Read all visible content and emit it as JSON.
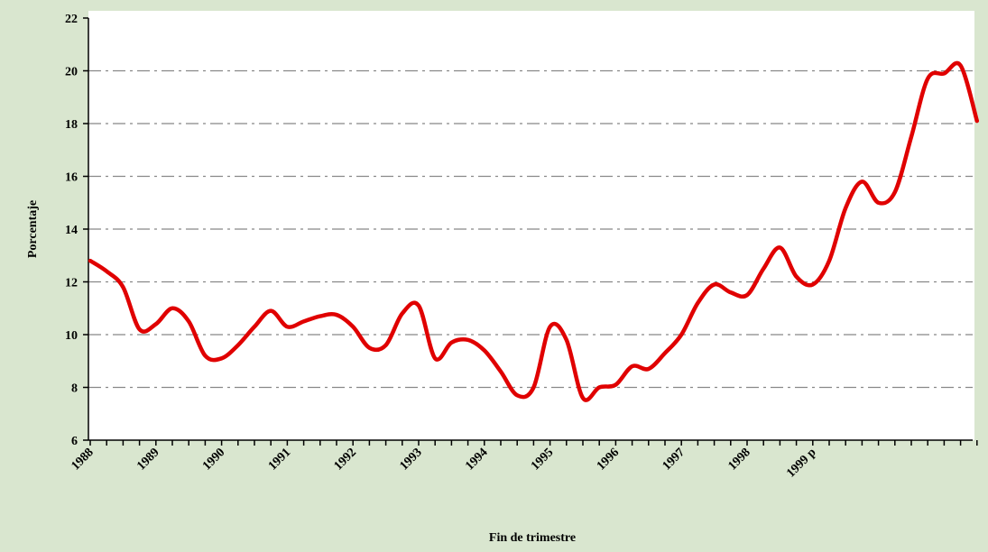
{
  "chart_data": {
    "type": "line",
    "x_label": "Fin de trimestre",
    "y_label": "Porcentaje",
    "categories": [
      "1988",
      null,
      null,
      null,
      "1989",
      null,
      null,
      null,
      "1990",
      null,
      null,
      null,
      "1991",
      null,
      null,
      null,
      "1992",
      null,
      null,
      null,
      "1993",
      null,
      null,
      null,
      "1994",
      null,
      null,
      null,
      "1995",
      null,
      null,
      null,
      "1996",
      null,
      null,
      null,
      "1997",
      null,
      null,
      null,
      "1998",
      null,
      null,
      null,
      "1999 p",
      null,
      null,
      null,
      null,
      null,
      null,
      null,
      null,
      null,
      null
    ],
    "series": [
      {
        "name": "Porcentaje",
        "color": "#e00000",
        "values": [
          12.8,
          12.4,
          11.8,
          10.2,
          10.4,
          11.0,
          10.5,
          9.2,
          9.1,
          9.6,
          10.3,
          10.9,
          10.3,
          10.5,
          10.7,
          10.75,
          10.3,
          9.5,
          9.6,
          10.8,
          11.1,
          9.1,
          9.7,
          9.8,
          9.4,
          8.6,
          7.7,
          8.0,
          10.3,
          9.8,
          7.6,
          8.0,
          8.1,
          8.8,
          8.7,
          9.3,
          10.0,
          11.2,
          11.9,
          11.6,
          11.5,
          12.5,
          13.3,
          12.2,
          11.9,
          12.8,
          14.8,
          15.8,
          15.0,
          15.4,
          17.5,
          19.7,
          19.9,
          20.2,
          18.1
        ]
      }
    ],
    "ylim": [
      6,
      22
    ],
    "yticks": [
      6,
      8,
      10,
      12,
      14,
      16,
      18,
      20,
      22
    ],
    "grid": true
  }
}
